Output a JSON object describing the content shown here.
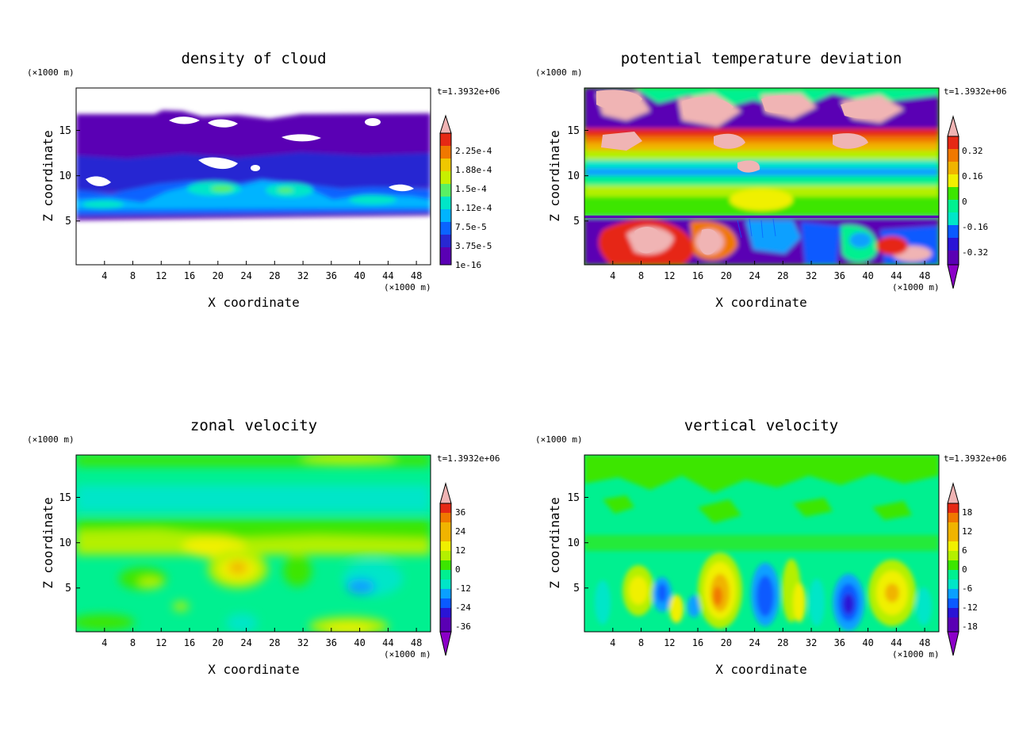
{
  "chart_data": [
    {
      "type": "heatmap",
      "title": "density of cloud",
      "time_label": "t=1.3932e+06",
      "xlabel": "X coordinate",
      "ylabel": "Z coordinate",
      "x_unit": "(×1000 m)",
      "z_unit": "(×1000 m)",
      "xlim": [
        0,
        50
      ],
      "ylim": [
        0,
        19.5
      ],
      "x_ticks": [
        "4",
        "8",
        "12",
        "16",
        "20",
        "24",
        "28",
        "32",
        "36",
        "40",
        "44",
        "48"
      ],
      "y_ticks": [
        "5",
        "10",
        "15"
      ],
      "colorbar": {
        "labels": [
          "2.25e-4",
          "1.88e-4",
          "1.5e-4",
          "1.12e-4",
          "7.5e-5",
          "3.75e-5",
          "1e-16"
        ],
        "levels": [
          1e-16,
          3.75e-05,
          7.5e-05,
          0.000112,
          0.00015,
          0.000188,
          0.000225
        ],
        "lower_triangle": false,
        "upper_triangle": true
      }
    },
    {
      "type": "heatmap",
      "title": "potential temperature deviation",
      "time_label": "t=1.3932e+06",
      "xlabel": "X coordinate",
      "ylabel": "Z coordinate",
      "x_unit": "(×1000 m)",
      "z_unit": "(×1000 m)",
      "xlim": [
        0,
        50
      ],
      "ylim": [
        0,
        19.5
      ],
      "x_ticks": [
        "4",
        "8",
        "12",
        "16",
        "20",
        "24",
        "28",
        "32",
        "36",
        "40",
        "44",
        "48"
      ],
      "y_ticks": [
        "5",
        "10",
        "15"
      ],
      "colorbar": {
        "labels": [
          "0.32",
          "0.16",
          "0",
          "-0.16",
          "-0.32"
        ],
        "levels": [
          -0.32,
          -0.16,
          0,
          0.16,
          0.32
        ],
        "lower_triangle": true,
        "upper_triangle": true
      }
    },
    {
      "type": "heatmap",
      "title": "zonal velocity",
      "time_label": "t=1.3932e+06",
      "xlabel": "X coordinate",
      "ylabel": "Z coordinate",
      "x_unit": "(×1000 m)",
      "z_unit": "(×1000 m)",
      "xlim": [
        0,
        50
      ],
      "ylim": [
        0,
        19.5
      ],
      "x_ticks": [
        "4",
        "8",
        "12",
        "16",
        "20",
        "24",
        "28",
        "32",
        "36",
        "40",
        "44",
        "48"
      ],
      "y_ticks": [
        "5",
        "10",
        "15"
      ],
      "colorbar": {
        "labels": [
          "36",
          "24",
          "12",
          "0",
          "-12",
          "-24",
          "-36"
        ],
        "levels": [
          -36,
          -24,
          -12,
          0,
          12,
          24,
          36
        ],
        "lower_triangle": true,
        "upper_triangle": true
      }
    },
    {
      "type": "heatmap",
      "title": "vertical velocity",
      "time_label": "t=1.3932e+06",
      "xlabel": "X coordinate",
      "ylabel": "Z coordinate",
      "x_unit": "(×1000 m)",
      "z_unit": "(×1000 m)",
      "xlim": [
        0,
        50
      ],
      "ylim": [
        0,
        19.5
      ],
      "x_ticks": [
        "4",
        "8",
        "12",
        "16",
        "20",
        "24",
        "28",
        "32",
        "36",
        "40",
        "44",
        "48"
      ],
      "y_ticks": [
        "5",
        "10",
        "15"
      ],
      "colorbar": {
        "labels": [
          "18",
          "12",
          "6",
          "0",
          "-6",
          "-12",
          "-18"
        ],
        "levels": [
          -18,
          -12,
          -6,
          0,
          6,
          12,
          18
        ],
        "lower_triangle": true,
        "upper_triangle": true
      }
    }
  ],
  "colors": {
    "palette": [
      "#5a00b4",
      "#2a14d6",
      "#0a5aff",
      "#0aa0ff",
      "#00e6c8",
      "#00f090",
      "#3ce600",
      "#b4f000",
      "#f0f000",
      "#f0b400",
      "#f07800",
      "#e62814",
      "#f0b4b4"
    ],
    "cloud_palette": [
      "#5a00b4",
      "#2828d2",
      "#0a64ff",
      "#00b4ff",
      "#00e6c8",
      "#5af064",
      "#c8f000",
      "#f0c800",
      "#f07800",
      "#e62814",
      "#f0b4b4"
    ]
  }
}
